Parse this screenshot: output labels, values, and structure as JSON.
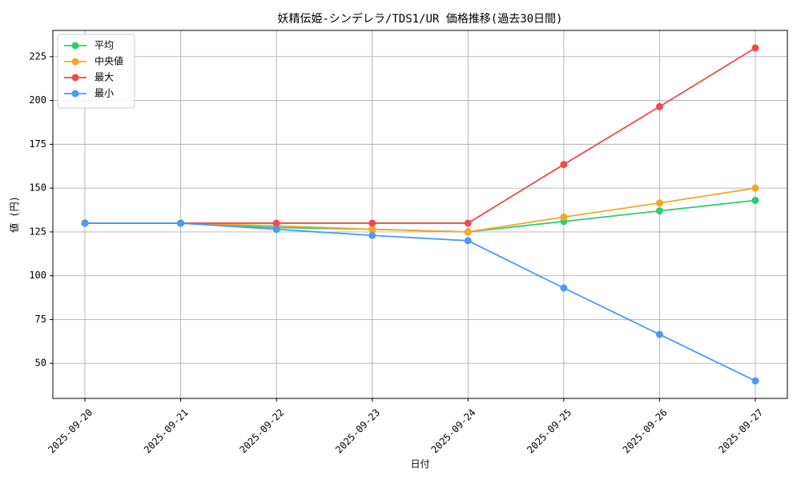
{
  "chart_data": {
    "type": "line",
    "title": "妖精伝姫-シンデレラ/TDS1/UR 価格推移(過去30日間)",
    "xlabel": "日付",
    "ylabel": "値 (円)",
    "categories": [
      "2025-09-20",
      "2025-09-21",
      "2025-09-22",
      "2025-09-23",
      "2025-09-24",
      "2025-09-25",
      "2025-09-26",
      "2025-09-27"
    ],
    "ylim": [
      30,
      240
    ],
    "yticks": [
      50,
      75,
      100,
      125,
      150,
      175,
      200,
      225
    ],
    "grid": true,
    "legend_position": "top-left",
    "series": [
      {
        "name": "平均",
        "color": "#2ecc71",
        "values": [
          130,
          130,
          127.5,
          126.5,
          125,
          131,
          137,
          143
        ]
      },
      {
        "name": "中央値",
        "color": "#f5a623",
        "values": [
          130,
          130,
          128.5,
          126.5,
          125,
          133.5,
          141.5,
          150
        ]
      },
      {
        "name": "最大",
        "color": "#f04a4a",
        "values": [
          130,
          130,
          130,
          130,
          130,
          163.5,
          196.5,
          230
        ]
      },
      {
        "name": "最小",
        "color": "#4a9af5",
        "values": [
          130,
          130,
          126.5,
          123,
          120,
          93,
          66.5,
          40
        ]
      }
    ]
  }
}
